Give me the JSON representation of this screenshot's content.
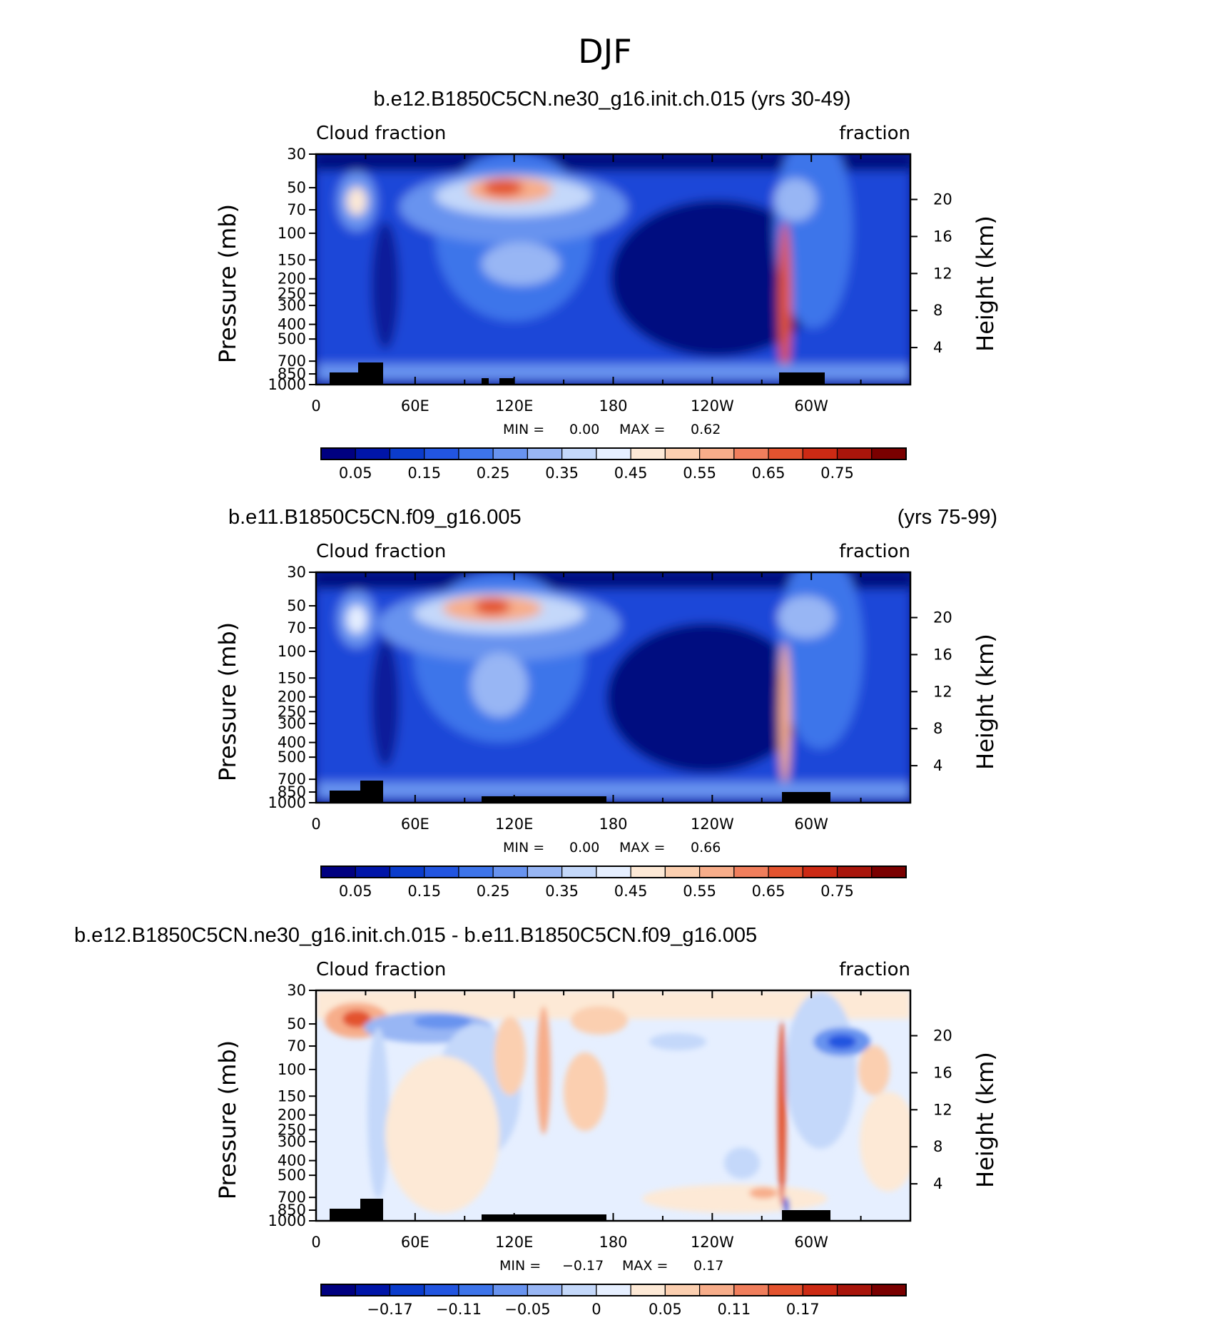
{
  "chart_data": {
    "type": "heatmap",
    "title": "DJF",
    "x_ticks": [
      "0",
      "60E",
      "120E",
      "180",
      "120W",
      "60W"
    ],
    "y_ticks": [
      "30",
      "50",
      "70",
      "100",
      "150",
      "200",
      "250",
      "300",
      "400",
      "500",
      "700",
      "850",
      "1000"
    ],
    "y_ticks_right": [
      "20",
      "16",
      "12",
      "8",
      "4"
    ],
    "ylabel": "Pressure (mb)",
    "ylabel_right": "Height (km)",
    "left_label": "Cloud fraction",
    "right_label": "fraction",
    "min_label": "MIN =",
    "max_label": "MAX =",
    "panels": [
      {
        "title_left": "b.e12.B1850C5CN.ne30_g16.init.ch.015 (yrs 30-49)",
        "title_right": "",
        "min": "0.00",
        "max": "0.62",
        "colorbar_labels": [
          "0.05",
          "0.15",
          "0.25",
          "0.35",
          "0.45",
          "0.55",
          "0.65",
          "0.75"
        ],
        "kind": "abs"
      },
      {
        "title_left": "b.e11.B1850C5CN.f09_g16.005",
        "title_right": "(yrs 75-99)",
        "min": "0.00",
        "max": "0.66",
        "colorbar_labels": [
          "0.05",
          "0.15",
          "0.25",
          "0.35",
          "0.45",
          "0.55",
          "0.65",
          "0.75"
        ],
        "kind": "abs"
      },
      {
        "title_left": "b.e12.B1850C5CN.ne30_g16.init.ch.015 - b.e11.B1850C5CN.f09_g16.005",
        "title_right": "",
        "min": "−0.17",
        "max": "0.17",
        "colorbar_labels": [
          "−0.17",
          "−0.11",
          "−0.05",
          "0",
          "0.05",
          "0.11",
          "0.17"
        ],
        "kind": "diff"
      }
    ],
    "colorbar_colors": [
      "#000080",
      "#0015a8",
      "#0b3ccc",
      "#2255e0",
      "#3d74ea",
      "#6893ef",
      "#98b6f4",
      "#c4d8fa",
      "#e6efff",
      "#fde9d6",
      "#fbcfb0",
      "#f7ad8a",
      "#f07e5c",
      "#e3532f",
      "#cc2a14",
      "#a8150b",
      "#7a0000"
    ]
  }
}
